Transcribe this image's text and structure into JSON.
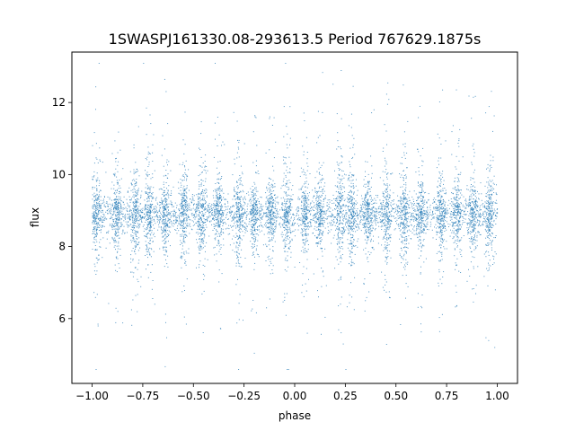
{
  "chart_data": {
    "type": "scatter",
    "title": "1SWASPJ161330.08-293613.5 Period 767629.1875s",
    "xlabel": "phase",
    "ylabel": "flux",
    "xlim": [
      -1.1,
      1.1
    ],
    "ylim": [
      4.2,
      13.4
    ],
    "xticks": [
      {
        "value": -1.0,
        "label": "−1.00"
      },
      {
        "value": -0.75,
        "label": "−0.75"
      },
      {
        "value": -0.5,
        "label": "−0.50"
      },
      {
        "value": -0.25,
        "label": "−0.25"
      },
      {
        "value": 0.0,
        "label": "0.00"
      },
      {
        "value": 0.25,
        "label": "0.25"
      },
      {
        "value": 0.5,
        "label": "0.50"
      },
      {
        "value": 0.75,
        "label": "0.75"
      },
      {
        "value": 1.0,
        "label": "1.00"
      }
    ],
    "yticks": [
      {
        "value": 6,
        "label": "6"
      },
      {
        "value": 8,
        "label": "8"
      },
      {
        "value": 10,
        "label": "10"
      },
      {
        "value": 12,
        "label": "12"
      }
    ],
    "grid": false,
    "legend": "none",
    "point_color": "#1f77b4",
    "x_range": [
      -1.0,
      1.0
    ],
    "flux_median": 8.9,
    "flux_range": [
      4.6,
      13.1
    ],
    "clusters": [
      {
        "phase": -0.98,
        "spread": 0.35
      },
      {
        "phase": -0.88,
        "spread": 0.3
      },
      {
        "phase": -0.79,
        "spread": 0.45
      },
      {
        "phase": -0.72,
        "spread": 0.4
      },
      {
        "phase": -0.64,
        "spread": 0.3
      },
      {
        "phase": -0.55,
        "spread": 0.35
      },
      {
        "phase": -0.46,
        "spread": 0.45
      },
      {
        "phase": -0.38,
        "spread": 0.3
      },
      {
        "phase": -0.28,
        "spread": 0.35
      },
      {
        "phase": -0.2,
        "spread": 0.3
      },
      {
        "phase": -0.12,
        "spread": 0.3
      },
      {
        "phase": -0.04,
        "spread": 0.4
      },
      {
        "phase": 0.05,
        "spread": 0.3
      },
      {
        "phase": 0.12,
        "spread": 0.35
      },
      {
        "phase": 0.22,
        "spread": 0.45
      },
      {
        "phase": 0.28,
        "spread": 0.4
      },
      {
        "phase": 0.36,
        "spread": 0.3
      },
      {
        "phase": 0.45,
        "spread": 0.35
      },
      {
        "phase": 0.54,
        "spread": 0.45
      },
      {
        "phase": 0.62,
        "spread": 0.3
      },
      {
        "phase": 0.72,
        "spread": 0.35
      },
      {
        "phase": 0.8,
        "spread": 0.3
      },
      {
        "phase": 0.88,
        "spread": 0.3
      },
      {
        "phase": 0.96,
        "spread": 0.4
      }
    ]
  }
}
